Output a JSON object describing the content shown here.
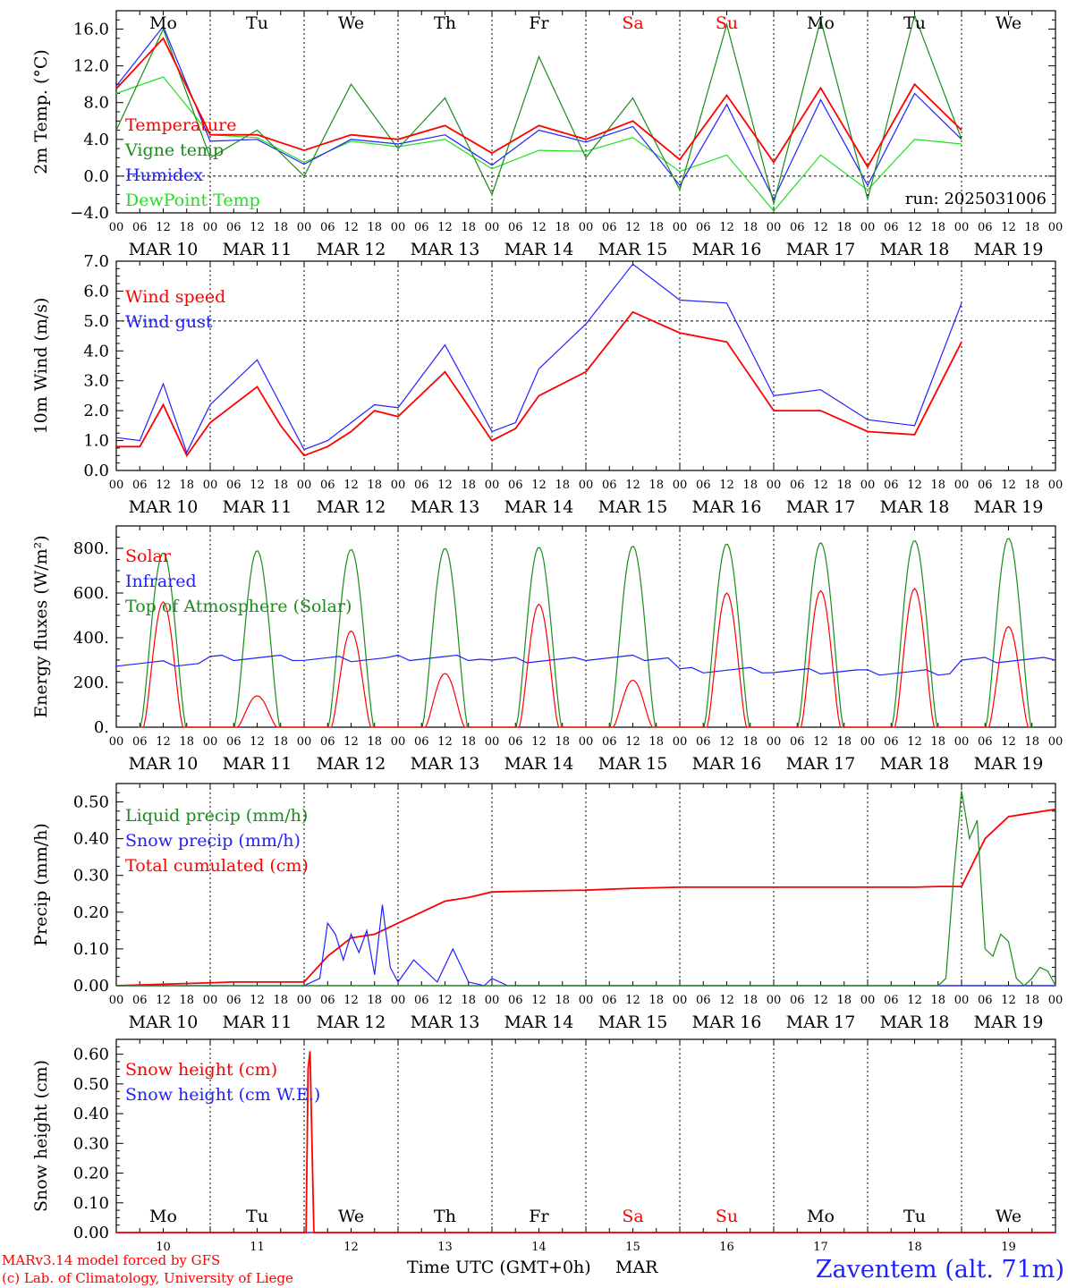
{
  "days": [
    "MAR 10",
    "MAR 11",
    "MAR 12",
    "MAR 13",
    "MAR 14",
    "MAR 15",
    "MAR 16",
    "MAR 17",
    "MAR 18",
    "MAR 19"
  ],
  "weekdays": [
    "Mo",
    "Tu",
    "We",
    "Th",
    "Fr",
    "Sa",
    "Su",
    "Mo",
    "Tu",
    "We"
  ],
  "weekday_colors": [
    "#000000",
    "#000000",
    "#000000",
    "#000000",
    "#000000",
    "#ff0000",
    "#ff0000",
    "#000000",
    "#000000",
    "#000000"
  ],
  "hour_ticks": [
    "00",
    "06",
    "12",
    "18"
  ],
  "end_tick": "00",
  "bottom_day_numbers": [
    "10",
    "11",
    "12",
    "13",
    "14",
    "15",
    "16",
    "17",
    "18",
    "19"
  ],
  "footer": {
    "xlabel": "Time UTC (GMT+0h)",
    "month": "MAR",
    "credit1": "MARv3.14 model forced by GFS",
    "credit2": "(c) Lab. of Climatology, University of Liege",
    "station": "Zaventem (alt. 71m)"
  },
  "colors": {
    "red": "#ff0000",
    "green": "#1a8c1a",
    "blue": "#2020ff",
    "lightgreen": "#20e020",
    "axis": "#000000"
  },
  "chart_data": [
    {
      "type": "line",
      "ylabel": "2m Temp. (°C)",
      "ylim": [
        -4,
        18
      ],
      "yticks": [
        -4,
        0,
        4,
        8,
        12,
        16
      ],
      "ytick_labels": [
        "−4.0",
        "0.0",
        "4.0",
        "8.0",
        "12.0",
        "16.0"
      ],
      "dashed_ref": 0,
      "annotation": "run: 2025031006",
      "legend_placement": "left",
      "series": [
        {
          "name": "Temperature",
          "color": "red",
          "x_hours": [
            0,
            12,
            24,
            36,
            48,
            60,
            72,
            84,
            96,
            108,
            120,
            132,
            144,
            156,
            168,
            180,
            192,
            204,
            216
          ],
          "values": [
            9.5,
            15,
            4.5,
            4.5,
            2.8,
            4.5,
            4,
            5.5,
            2.5,
            5.5,
            4,
            6,
            1.8,
            8.8,
            1.5,
            9.6,
            1,
            10,
            5
          ]
        },
        {
          "name": "Vigne temp",
          "color": "green",
          "x_hours": [
            0,
            12,
            24,
            36,
            48,
            60,
            72,
            84,
            96,
            108,
            120,
            132,
            144,
            156,
            168,
            180,
            192,
            204,
            216
          ],
          "values": [
            5,
            16,
            2,
            5,
            0,
            10,
            3,
            8.5,
            -2,
            13,
            2,
            8.5,
            -1.5,
            16.5,
            -3,
            17,
            -2.5,
            17.5,
            4
          ]
        },
        {
          "name": "Humidex",
          "color": "blue",
          "x_hours": [
            0,
            12,
            24,
            36,
            48,
            60,
            72,
            84,
            96,
            108,
            120,
            132,
            144,
            156,
            168,
            180,
            192,
            204,
            216
          ],
          "values": [
            9.8,
            16.3,
            3.8,
            4,
            1.3,
            4,
            3.5,
            4.5,
            1.2,
            5,
            3.7,
            5.4,
            -1,
            7.8,
            -2.5,
            8.3,
            -1,
            9,
            4
          ]
        },
        {
          "name": "DewPoint Temp",
          "color": "lightgreen",
          "x_hours": [
            0,
            12,
            24,
            36,
            48,
            60,
            72,
            84,
            96,
            108,
            120,
            132,
            144,
            156,
            168,
            180,
            192,
            204,
            216
          ],
          "values": [
            9,
            10.8,
            4.5,
            4.2,
            1.5,
            3.8,
            3.2,
            4,
            0.8,
            2.8,
            2.7,
            4.2,
            0.5,
            2.3,
            -3.8,
            2.3,
            -1.5,
            4,
            3.5
          ]
        }
      ]
    },
    {
      "type": "line",
      "ylabel": "10m Wind (m/s)",
      "ylim": [
        0,
        7
      ],
      "yticks": [
        0,
        1,
        2,
        3,
        4,
        5,
        6,
        7
      ],
      "ytick_labels": [
        "0.0",
        "1.0",
        "2.0",
        "3.0",
        "4.0",
        "5.0",
        "6.0",
        "7.0"
      ],
      "dashed_ref": 5,
      "legend_placement": "left",
      "series": [
        {
          "name": "Wind speed",
          "color": "red",
          "x_hours": [
            0,
            6,
            12,
            18,
            24,
            36,
            42,
            48,
            54,
            60,
            66,
            72,
            84,
            96,
            102,
            108,
            120,
            132,
            144,
            156,
            168,
            180,
            192,
            204,
            216
          ],
          "values": [
            0.8,
            0.8,
            2.2,
            0.5,
            1.6,
            2.8,
            1.5,
            0.5,
            0.8,
            1.3,
            2,
            1.8,
            3.3,
            1,
            1.4,
            2.5,
            3.3,
            5.3,
            4.6,
            4.3,
            2,
            2,
            1.3,
            1.2,
            4.3
          ]
        },
        {
          "name": "Wind gust",
          "color": "blue",
          "x_hours": [
            0,
            6,
            12,
            18,
            24,
            36,
            42,
            48,
            54,
            60,
            66,
            72,
            84,
            96,
            102,
            108,
            120,
            132,
            144,
            156,
            168,
            180,
            192,
            204,
            216
          ],
          "values": [
            1.1,
            1,
            2.9,
            0.6,
            2.2,
            3.7,
            2.2,
            0.7,
            1,
            1.6,
            2.2,
            2.1,
            4.2,
            1.3,
            1.6,
            3.4,
            4.9,
            6.9,
            5.7,
            5.6,
            2.5,
            2.7,
            1.7,
            1.5,
            5.6
          ]
        }
      ]
    },
    {
      "type": "line",
      "ylabel": "Energy fluxes (W/m²)",
      "ylim": [
        0,
        900
      ],
      "yticks": [
        0,
        200,
        400,
        600,
        800
      ],
      "ytick_labels": [
        "0.",
        "200.",
        "400.",
        "600.",
        "800."
      ],
      "legend_placement": "left",
      "series": [
        {
          "name": "Solar",
          "color": "red",
          "daily_peaks": [
            560,
            140,
            430,
            240,
            550,
            210,
            600,
            610,
            620,
            450
          ]
        },
        {
          "name": "Infrared",
          "color": "blue",
          "daily_levels": [
            285,
            310,
            305,
            310,
            300,
            310,
            255,
            250,
            245,
            300
          ]
        },
        {
          "name": "Top of Atmosphere (Solar)",
          "color": "green",
          "daily_peaks": [
            780,
            790,
            795,
            800,
            805,
            810,
            820,
            825,
            835,
            845
          ]
        }
      ]
    },
    {
      "type": "line",
      "ylabel": "Precip (mm/h)",
      "ylim": [
        0,
        0.55
      ],
      "yticks": [
        0,
        0.1,
        0.2,
        0.3,
        0.4,
        0.5
      ],
      "ytick_labels": [
        "0.00",
        "0.10",
        "0.20",
        "0.30",
        "0.40",
        "0.50"
      ],
      "legend_placement": "left",
      "series": [
        {
          "name": "Liquid precip (mm/h)",
          "color": "green",
          "x_hours": [
            0,
            210,
            212,
            214,
            216,
            218,
            220,
            222,
            224,
            226,
            228,
            230,
            232,
            234,
            236,
            238,
            240
          ],
          "values": [
            0,
            0,
            0.02,
            0.3,
            0.53,
            0.4,
            0.45,
            0.1,
            0.08,
            0.14,
            0.12,
            0.02,
            0,
            0.02,
            0.05,
            0.04,
            0
          ]
        },
        {
          "name": "Snow precip (mm/h)",
          "color": "blue",
          "x_hours": [
            0,
            48,
            52,
            54,
            56,
            58,
            60,
            62,
            64,
            66,
            68,
            70,
            72,
            74,
            76,
            78,
            82,
            86,
            90,
            94,
            96,
            100,
            240
          ],
          "values": [
            0,
            0,
            0.02,
            0.17,
            0.14,
            0.07,
            0.14,
            0.09,
            0.15,
            0.03,
            0.22,
            0.05,
            0.01,
            0.04,
            0.07,
            0.05,
            0.01,
            0.1,
            0.01,
            0,
            0.02,
            0,
            0
          ]
        },
        {
          "name": "Total cumulated (cm)",
          "color": "red",
          "x_hours": [
            0,
            30,
            48,
            54,
            60,
            66,
            72,
            78,
            84,
            90,
            96,
            108,
            120,
            132,
            144,
            156,
            168,
            180,
            192,
            204,
            210,
            216,
            222,
            228,
            234,
            240
          ],
          "values": [
            0,
            0.01,
            0.01,
            0.08,
            0.13,
            0.14,
            0.17,
            0.2,
            0.23,
            0.24,
            0.255,
            0.258,
            0.26,
            0.265,
            0.268,
            0.268,
            0.268,
            0.268,
            0.268,
            0.268,
            0.27,
            0.27,
            0.4,
            0.46,
            0.47,
            0.48
          ]
        }
      ]
    },
    {
      "type": "line",
      "ylabel": "Snow height (cm)",
      "ylim": [
        0,
        0.65
      ],
      "yticks": [
        0,
        0.1,
        0.2,
        0.3,
        0.4,
        0.5,
        0.6
      ],
      "ytick_labels": [
        "0.00",
        "0.10",
        "0.20",
        "0.30",
        "0.40",
        "0.50",
        "0.60"
      ],
      "legend_placement": "left",
      "series": [
        {
          "name": "Snow height (cm)",
          "color": "red",
          "x_hours": [
            0,
            48.5,
            49,
            49.5,
            50,
            50.5,
            240
          ],
          "values": [
            0,
            0,
            0.55,
            0.61,
            0.3,
            0,
            0
          ]
        },
        {
          "name": "Snow height (cm W.E.)",
          "color": "blue",
          "x_hours": [
            0,
            240
          ],
          "values": [
            0,
            0
          ]
        }
      ]
    }
  ]
}
